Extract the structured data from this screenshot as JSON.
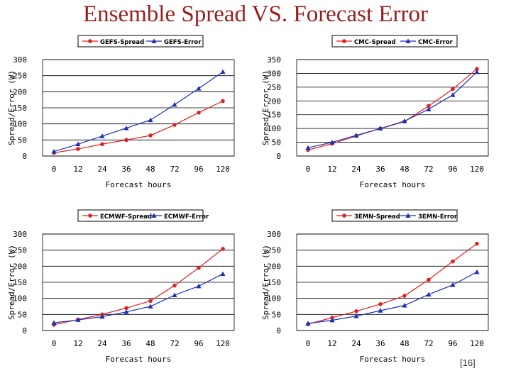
{
  "title": "Ensemble Spread VS. Forecast Error",
  "citation": "[16]",
  "colors": {
    "title": "#9b1c1c",
    "spread": "#e02020",
    "error": "#1f2fb5",
    "grid": "#000000"
  },
  "chart_data": [
    {
      "type": "line",
      "categories": [
        "0",
        "12",
        "24",
        "36",
        "48",
        "72",
        "96",
        "120"
      ],
      "xlabel": "Forecast hours",
      "ylabel": "Spread/Error (W)",
      "ylim": [
        0,
        300
      ],
      "yticks": [
        0,
        50,
        100,
        150,
        200,
        250,
        300
      ],
      "legend": "top",
      "grid": true,
      "series": [
        {
          "name": "GEFS-Spread",
          "color": "#e02020",
          "marker": "circle",
          "values": [
            10,
            22,
            37,
            50,
            64,
            97,
            135,
            171
          ]
        },
        {
          "name": "GEFS-Error",
          "color": "#1f2fb5",
          "marker": "triangle",
          "values": [
            14,
            37,
            62,
            87,
            112,
            160,
            210,
            262
          ]
        }
      ]
    },
    {
      "type": "line",
      "categories": [
        "0",
        "12",
        "24",
        "36",
        "48",
        "72",
        "96",
        "120"
      ],
      "xlabel": "Forecast hours",
      "ylabel": "Spread/Error (W)",
      "ylim": [
        0,
        350
      ],
      "yticks": [
        0,
        50,
        100,
        150,
        200,
        250,
        300,
        350
      ],
      "legend": "top",
      "grid": true,
      "series": [
        {
          "name": "CMC-Spread",
          "color": "#e02020",
          "marker": "circle",
          "values": [
            22,
            45,
            73,
            100,
            125,
            182,
            243,
            316
          ]
        },
        {
          "name": "CMC-Error",
          "color": "#1f2fb5",
          "marker": "triangle",
          "values": [
            30,
            50,
            75,
            100,
            127,
            170,
            222,
            305
          ]
        }
      ]
    },
    {
      "type": "line",
      "categories": [
        "0",
        "12",
        "24",
        "36",
        "48",
        "72",
        "96",
        "120"
      ],
      "xlabel": "Forecast hours",
      "ylabel": "Spread/Error (W)",
      "ylim": [
        0,
        300
      ],
      "yticks": [
        0,
        50,
        100,
        150,
        200,
        250,
        300
      ],
      "legend": "top",
      "grid": true,
      "series": [
        {
          "name": "ECMWF-Spread",
          "color": "#e02020",
          "marker": "circle",
          "values": [
            18,
            34,
            50,
            70,
            92,
            140,
            195,
            254
          ]
        },
        {
          "name": "ECMWF-Error",
          "color": "#1f2fb5",
          "marker": "triangle",
          "values": [
            24,
            33,
            43,
            58,
            75,
            110,
            138,
            176
          ]
        }
      ]
    },
    {
      "type": "line",
      "categories": [
        "0",
        "12",
        "24",
        "36",
        "48",
        "72",
        "96",
        "120"
      ],
      "xlabel": "Forecast hours",
      "ylabel": "Spread/Error (W)",
      "ylim": [
        0,
        300
      ],
      "yticks": [
        0,
        50,
        100,
        150,
        200,
        250,
        300
      ],
      "legend": "top",
      "grid": true,
      "series": [
        {
          "name": "3EMN-Spread",
          "color": "#e02020",
          "marker": "circle",
          "values": [
            20,
            40,
            60,
            82,
            108,
            158,
            215,
            270
          ]
        },
        {
          "name": "3EMN-Error",
          "color": "#1f2fb5",
          "marker": "triangle",
          "values": [
            22,
            32,
            45,
            62,
            78,
            112,
            142,
            182
          ]
        }
      ]
    }
  ]
}
